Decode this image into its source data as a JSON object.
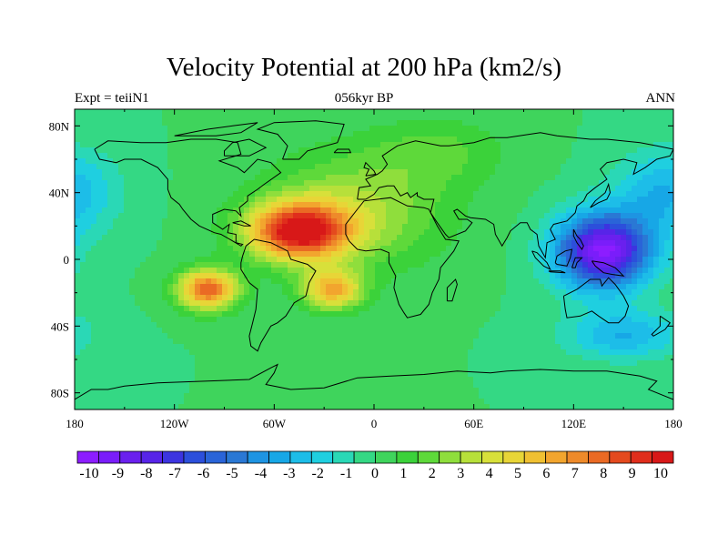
{
  "header": {
    "title": "Velocity Potential at 200 hPa (km2/s)",
    "left": "Expt = teiiN1",
    "center": "056kyr BP",
    "right": "ANN"
  },
  "axes": {
    "lat_labels": [
      {
        "text": "80N",
        "lat": 80
      },
      {
        "text": "40N",
        "lat": 40
      },
      {
        "text": "0",
        "lat": 0
      },
      {
        "text": "40S",
        "lat": -40
      },
      {
        "text": "80S",
        "lat": -80
      }
    ],
    "lon_labels": [
      {
        "text": "180",
        "lon": -180
      },
      {
        "text": "120W",
        "lon": -120
      },
      {
        "text": "60W",
        "lon": -60
      },
      {
        "text": "0",
        "lon": 0
      },
      {
        "text": "60E",
        "lon": 60
      },
      {
        "text": "120E",
        "lon": 120
      },
      {
        "text": "180",
        "lon": 180
      }
    ],
    "lat_range": [
      -90,
      90
    ],
    "lon_range": [
      -180,
      180
    ]
  },
  "colorbar": {
    "labels": [
      "-10",
      "-9",
      "-8",
      "-7",
      "-6",
      "-5",
      "-4",
      "-3",
      "-2",
      "-1",
      "0",
      "1",
      "2",
      "3",
      "4",
      "5",
      "6",
      "7",
      "8",
      "9",
      "10"
    ],
    "colors": [
      "#8c1dff",
      "#7a1dfa",
      "#6a20ee",
      "#5724e8",
      "#3c34e0",
      "#2c4fdb",
      "#2a64d8",
      "#2a78d4",
      "#1e94e2",
      "#17a7e6",
      "#1dbde8",
      "#1fcfe0",
      "#2ad8b6",
      "#34d884",
      "#3fd45c",
      "#3bd23a",
      "#5ed93a",
      "#8fde3c",
      "#b7e03a",
      "#d8e03a",
      "#e8d537",
      "#f0c032",
      "#f2a52e",
      "#ee8a2a",
      "#ea6a24",
      "#e44a1e",
      "#e02e1c",
      "#d81818"
    ]
  },
  "field_centers": [
    {
      "lon": -45,
      "lat": 17,
      "amp": 10,
      "slon": 30,
      "slat": 17
    },
    {
      "lon": -100,
      "lat": -18,
      "amp": 8,
      "slon": 18,
      "slat": 12
    },
    {
      "lon": -25,
      "lat": -18,
      "amp": 6,
      "slon": 18,
      "slat": 12
    },
    {
      "lon": 138,
      "lat": 5,
      "amp": -10,
      "slon": 28,
      "slat": 22
    },
    {
      "lon": 40,
      "lat": 65,
      "amp": 1.5,
      "slon": 40,
      "slat": 20
    },
    {
      "lon": -10,
      "lat": 30,
      "amp": 3,
      "slon": 55,
      "slat": 35
    },
    {
      "lon": 150,
      "lat": -45,
      "amp": -3,
      "slon": 35,
      "slat": 15
    },
    {
      "lon": 175,
      "lat": 40,
      "amp": -3,
      "slon": 30,
      "slat": 25
    }
  ]
}
